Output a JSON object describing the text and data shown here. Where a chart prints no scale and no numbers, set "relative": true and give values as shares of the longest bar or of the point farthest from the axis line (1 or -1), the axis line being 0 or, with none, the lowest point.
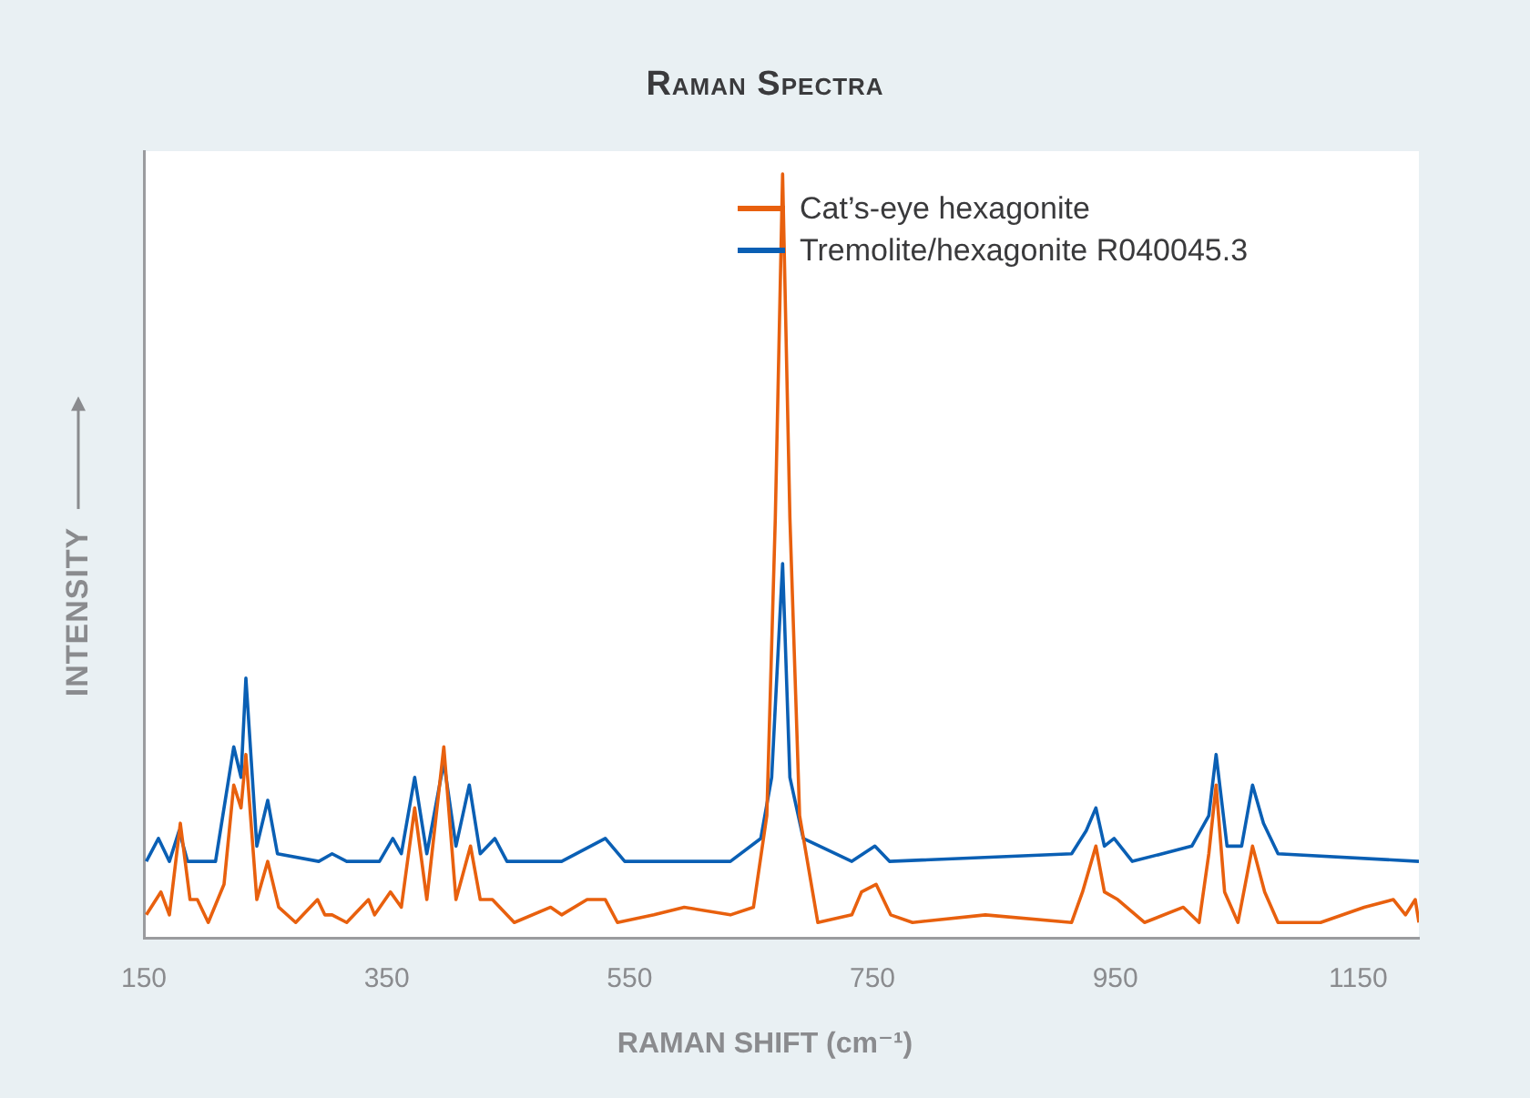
{
  "chart_data": {
    "type": "line",
    "title": "Raman Spectra",
    "xlabel": "RAMAN SHIFT (cm⁻¹)",
    "ylabel": "INTENSITY",
    "relative": true,
    "xlim": [
      150,
      1200
    ],
    "xticks": [
      150,
      350,
      550,
      750,
      950,
      1150
    ],
    "grid": false,
    "legend": "top right",
    "marker": "none",
    "line_style": "solid",
    "series": [
      {
        "name": "Cat’s-eye hexagonite",
        "color": "#e8600e",
        "x": [
          152,
          164,
          171,
          180,
          188,
          194,
          203,
          216,
          224,
          230,
          234,
          243,
          252,
          261,
          275,
          293,
          299,
          305,
          317,
          335,
          340,
          353,
          362,
          373,
          383,
          397,
          407,
          419,
          427,
          437,
          455,
          485,
          494,
          515,
          530,
          540,
          570,
          595,
          633,
          652,
          663,
          670,
          676,
          682,
          690,
          705,
          733,
          741,
          753,
          765,
          783,
          843,
          914,
          923,
          934,
          941,
          952,
          974,
          1006,
          1019,
          1027,
          1033,
          1040,
          1051,
          1063,
          1073,
          1084,
          1119,
          1155,
          1179,
          1189,
          1197,
          1200
        ],
        "values": [
          0.03,
          0.06,
          0.03,
          0.15,
          0.05,
          0.05,
          0.02,
          0.07,
          0.2,
          0.17,
          0.24,
          0.05,
          0.1,
          0.04,
          0.02,
          0.05,
          0.03,
          0.03,
          0.02,
          0.05,
          0.03,
          0.06,
          0.04,
          0.17,
          0.05,
          0.25,
          0.05,
          0.12,
          0.05,
          0.05,
          0.02,
          0.04,
          0.03,
          0.05,
          0.05,
          0.02,
          0.03,
          0.04,
          0.03,
          0.04,
          0.16,
          0.55,
          1.0,
          0.55,
          0.16,
          0.02,
          0.03,
          0.06,
          0.07,
          0.03,
          0.02,
          0.03,
          0.02,
          0.06,
          0.12,
          0.06,
          0.05,
          0.02,
          0.04,
          0.02,
          0.11,
          0.2,
          0.06,
          0.02,
          0.12,
          0.06,
          0.02,
          0.02,
          0.04,
          0.05,
          0.03,
          0.05,
          0.02
        ]
      },
      {
        "name": "Tremolite/hexagonite R040045.3",
        "color": "#0a5fb4",
        "x": [
          152,
          162,
          171,
          179,
          186,
          209,
          224,
          230,
          234,
          243,
          252,
          260,
          294,
          305,
          317,
          344,
          355,
          362,
          373,
          383,
          397,
          407,
          418,
          427,
          439,
          449,
          494,
          530,
          546,
          591,
          633,
          658,
          667,
          676,
          682,
          693,
          733,
          752,
          764,
          914,
          926,
          934,
          941,
          949,
          964,
          1013,
          1027,
          1033,
          1042,
          1054,
          1063,
          1072,
          1084,
          1200
        ],
        "values": [
          0.1,
          0.13,
          0.1,
          0.14,
          0.1,
          0.1,
          0.25,
          0.21,
          0.34,
          0.12,
          0.18,
          0.11,
          0.1,
          0.11,
          0.1,
          0.1,
          0.13,
          0.11,
          0.21,
          0.11,
          0.23,
          0.12,
          0.2,
          0.11,
          0.13,
          0.1,
          0.1,
          0.13,
          0.1,
          0.1,
          0.1,
          0.13,
          0.21,
          0.49,
          0.21,
          0.13,
          0.1,
          0.12,
          0.1,
          0.11,
          0.14,
          0.17,
          0.12,
          0.13,
          0.1,
          0.12,
          0.16,
          0.24,
          0.12,
          0.12,
          0.2,
          0.15,
          0.11,
          0.1
        ]
      }
    ]
  }
}
